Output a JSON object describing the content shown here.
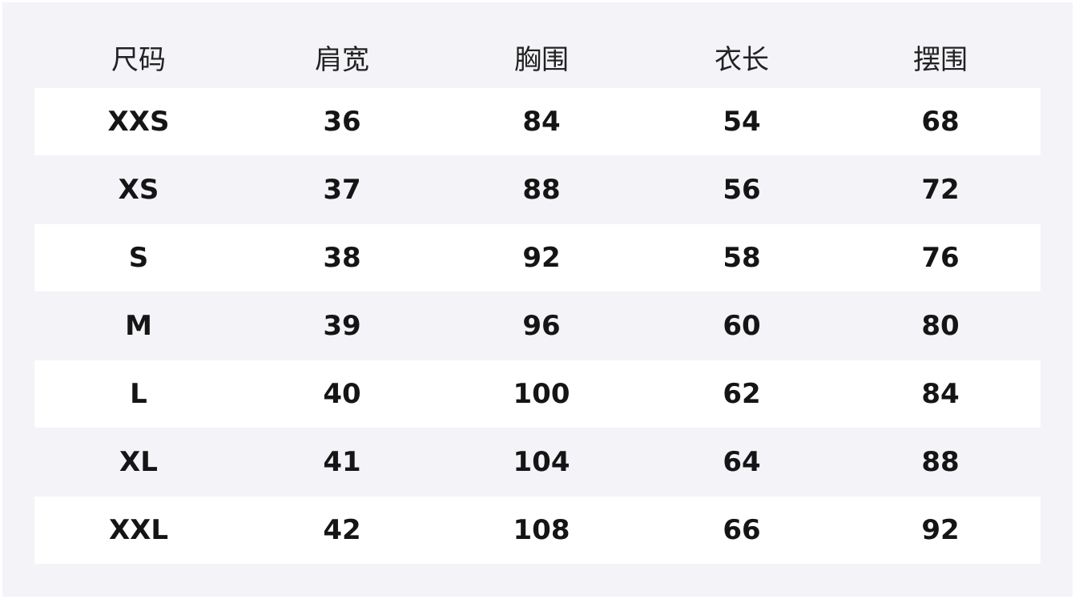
{
  "table": {
    "headers": [
      "尺码",
      "肩宽",
      "胸围",
      "衣长",
      "摆围"
    ],
    "rows": [
      [
        "XXS",
        "36",
        "84",
        "54",
        "68"
      ],
      [
        "XS",
        "37",
        "88",
        "56",
        "72"
      ],
      [
        "S",
        "38",
        "92",
        "58",
        "76"
      ],
      [
        "M",
        "39",
        "96",
        "60",
        "80"
      ],
      [
        "L",
        "40",
        "100",
        "62",
        "84"
      ],
      [
        "XL",
        "41",
        "104",
        "64",
        "88"
      ],
      [
        "XXL",
        "42",
        "108",
        "66",
        "92"
      ]
    ]
  },
  "colors": {
    "background": "#f3f3f8",
    "stripe": "#ffffff",
    "text": "#151515"
  }
}
